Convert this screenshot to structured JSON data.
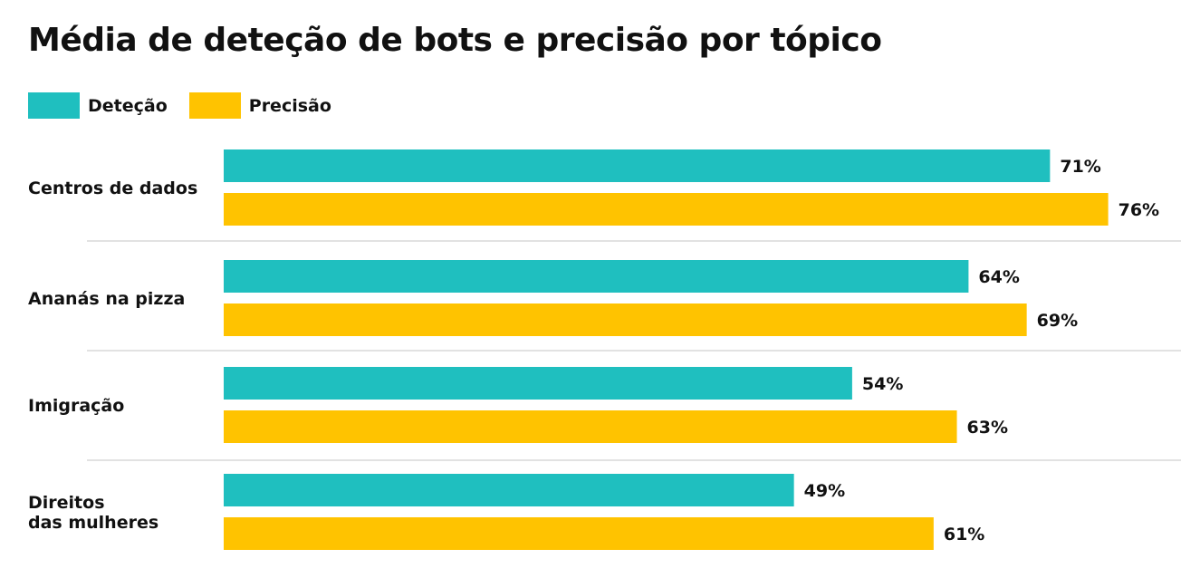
{
  "chart_data": {
    "type": "bar",
    "orientation": "horizontal",
    "title": "Média de deteção de bots e precisão por tópico",
    "categories": [
      [
        "Centros de dados"
      ],
      [
        "Ananás na pizza"
      ],
      [
        "Imigração"
      ],
      [
        "Direitos",
        "das mulheres"
      ]
    ],
    "series": [
      {
        "name": "Deteção",
        "color": "#1fbfbf",
        "values": [
          71,
          64,
          54,
          49
        ],
        "labels": [
          "71%",
          "64%",
          "54%",
          "49%"
        ]
      },
      {
        "name": "Precisão",
        "color": "#ffc300",
        "values": [
          76,
          69,
          63,
          61
        ],
        "labels": [
          "76%",
          "69%",
          "63%",
          "61%"
        ]
      }
    ],
    "xlim": [
      0,
      100
    ],
    "grid": false,
    "legend_position": "top-left",
    "separator_color": "#d9d9d9"
  }
}
